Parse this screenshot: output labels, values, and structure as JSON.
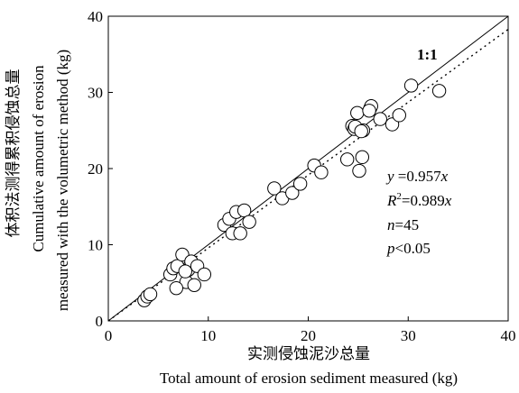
{
  "chart_data": {
    "type": "scatter",
    "xlabel_cn": "实测侵蚀泥沙总量",
    "xlabel_en": "Total amount of erosion sediment measured (kg)",
    "ylabel_cn": "体积法测得累积侵蚀总量",
    "ylabel_en_1": "Cumulative amount of erosion",
    "ylabel_en_2": "measured with the volumetric method (kg)",
    "xlim": [
      0,
      40
    ],
    "ylim": [
      0,
      40
    ],
    "x_ticks": [
      0,
      10,
      20,
      30,
      40
    ],
    "y_ticks": [
      0,
      10,
      20,
      30,
      40
    ],
    "x_tick_labels": [
      "0",
      "10",
      "20",
      "30",
      "40"
    ],
    "y_tick_labels": [
      "0",
      "10",
      "20",
      "30",
      "40"
    ],
    "reference_line_label": "1:1",
    "fit_slope": 0.957,
    "annotations": {
      "equation_lhs": "y",
      "equation_rhs": " =0.957",
      "equation_var": "x",
      "r2_lhs": "R",
      "r2_sup": "2",
      "r2_rhs": "=0.989",
      "r2_var": "x",
      "n_lhs": "n",
      "n_rhs": "=45",
      "p_lhs": "p",
      "p_rhs": "<0.05"
    },
    "x": [
      3.6,
      3.9,
      4.2,
      6.2,
      6.5,
      6.9,
      7.4,
      7.8,
      8.0,
      8.3,
      8.6,
      8.9,
      9.6,
      7.7,
      6.8,
      11.6,
      12.1,
      12.4,
      12.8,
      13.2,
      13.6,
      14.1,
      16.6,
      17.4,
      18.4,
      19.2,
      20.6,
      21.3,
      23.9,
      24.4,
      24.6,
      24.9,
      25.1,
      25.4,
      26.2,
      26.3,
      27.2,
      28.4,
      29.1,
      30.3,
      33.1,
      25.5,
      26.1,
      24.7,
      25.3
    ],
    "y": [
      2.7,
      3.2,
      3.5,
      6.1,
      6.9,
      7.2,
      8.7,
      5.1,
      6.7,
      7.8,
      4.7,
      7.2,
      6.1,
      6.5,
      4.3,
      12.6,
      13.4,
      11.5,
      14.3,
      11.5,
      14.5,
      13.0,
      17.4,
      16.1,
      16.8,
      18.0,
      20.4,
      19.5,
      21.2,
      25.6,
      25.2,
      27.3,
      19.7,
      21.5,
      27.9,
      28.2,
      26.5,
      25.8,
      27.0,
      30.9,
      30.2,
      25.0,
      27.6,
      25.5,
      24.9
    ]
  }
}
